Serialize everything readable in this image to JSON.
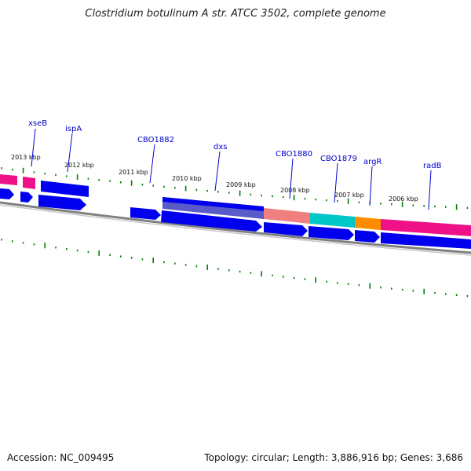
{
  "title": "Clostridium botulinum A str. ATCC 3502, complete genome",
  "accession": "Accession: NC_009495",
  "summary": "Topology: circular; Length: 3,886,916 bp; Genes: 3,686",
  "colors": {
    "tick": "#008000",
    "gene_arrow": "#0000ee",
    "gene_label": "#0000cc",
    "backbone": "#808080",
    "magenta": "#ee1188",
    "salmon": "#f08080",
    "cyan": "#00c8c8",
    "orange": "#ff8c00",
    "purple": "#5a5ac8"
  },
  "kbp_labels": [
    "2013 kbp",
    "2012 kbp",
    "2011 kbp",
    "2010 kbp",
    "2009 kbp",
    "2008 kbp",
    "2007 kbp",
    "2006 kbp"
  ],
  "gene_labels": [
    "xseB",
    "ispA",
    "CBO1882",
    "dxs",
    "CBO1880",
    "CBO1879",
    "argR",
    "radB"
  ]
}
